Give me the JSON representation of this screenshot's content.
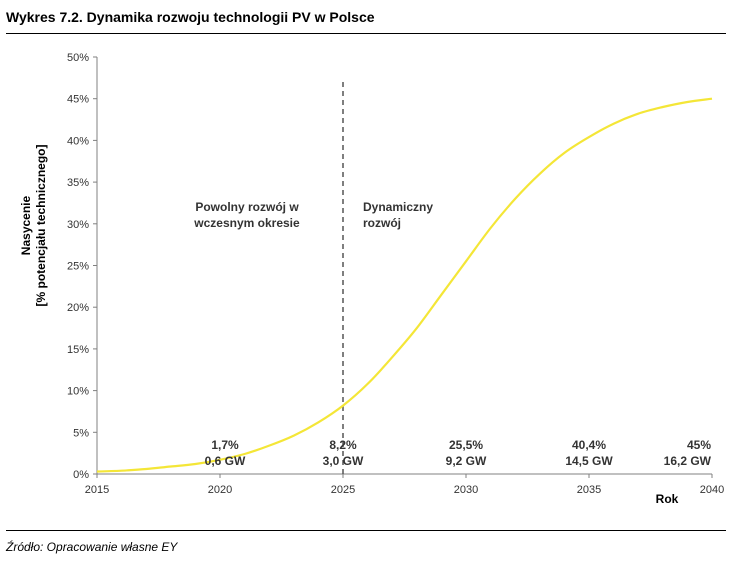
{
  "header": {
    "title": "Wykres 7.2. Dynamika rozwoju technologii PV w Polsce"
  },
  "footer": {
    "source": "Źródło: Opracowanie własne EY"
  },
  "chart_data": {
    "type": "line",
    "title": "Wykres 7.2. Dynamika rozwoju technologii PV w Polsce",
    "xlabel": "Rok",
    "ylabel": [
      "Nasycenie",
      "[% potencjału technicznego]"
    ],
    "xlim": [
      2015,
      2040
    ],
    "ylim": [
      0,
      50
    ],
    "x_ticks": [
      "2015",
      "2020",
      "2025",
      "2030",
      "2035",
      "2040"
    ],
    "y_ticks": [
      "0%",
      "5%",
      "10%",
      "15%",
      "20%",
      "25%",
      "30%",
      "35%",
      "40%",
      "45%",
      "50%"
    ],
    "grid": false,
    "line_color": "#f4e637",
    "series": [
      {
        "name": "Nasycenie",
        "x": [
          2015,
          2016,
          2017,
          2018,
          2019,
          2020,
          2021,
          2022,
          2023,
          2024,
          2025,
          2026,
          2027,
          2028,
          2029,
          2030,
          2031,
          2032,
          2033,
          2034,
          2035,
          2036,
          2037,
          2038,
          2039,
          2040
        ],
        "y": [
          0.3,
          0.4,
          0.6,
          0.9,
          1.2,
          1.7,
          2.4,
          3.4,
          4.6,
          6.2,
          8.2,
          10.8,
          14.0,
          17.5,
          21.5,
          25.5,
          29.5,
          33.0,
          36.0,
          38.5,
          40.4,
          42.0,
          43.2,
          44.0,
          44.6,
          45.0
        ]
      }
    ],
    "divider": {
      "x": 2025,
      "style": "dashed"
    },
    "regions": [
      {
        "lines": [
          "Powolny rozwój w",
          "wczesnym okresie"
        ]
      },
      {
        "lines": [
          "Dynamiczny",
          "rozwój"
        ]
      }
    ],
    "annotations": [
      {
        "x": 2020,
        "percent": "1,7%",
        "capacity": "0,6 GW"
      },
      {
        "x": 2025,
        "percent": "8,2%",
        "capacity": "3,0 GW"
      },
      {
        "x": 2030,
        "percent": "25,5%",
        "capacity": "9,2 GW"
      },
      {
        "x": 2035,
        "percent": "40,4%",
        "capacity": "14,5 GW"
      },
      {
        "x": 2040,
        "percent": "45%",
        "capacity": "16,2 GW"
      }
    ]
  }
}
